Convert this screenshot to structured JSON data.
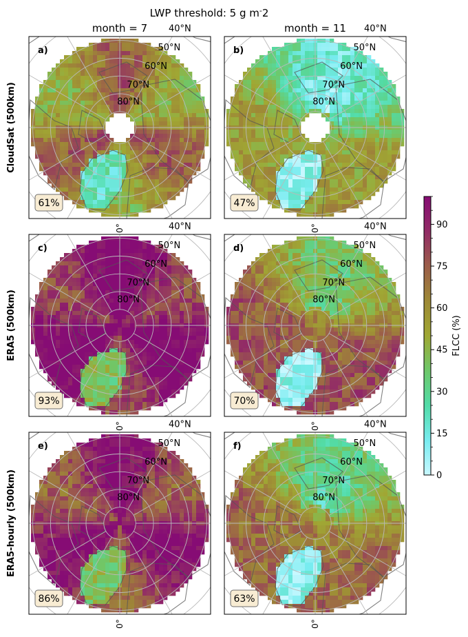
{
  "chart_data": {
    "type": "heatmap",
    "title": "LWP threshold: 5 g m$^-$2",
    "projection": "north polar stereographic",
    "column_titles": [
      "month = 7",
      "month = 11"
    ],
    "row_labels": [
      "CloudSat (500km)",
      "ERA5 (500km)",
      "ERA5-hourly (500km)"
    ],
    "lat_circle_labels": [
      "80°N",
      "70°N",
      "60°N",
      "50°N",
      "40°N"
    ],
    "lon_label": "0°",
    "colorbar": {
      "label": "FLCC (%)",
      "range": [
        0,
        100
      ],
      "tick_values": [
        0,
        15,
        30,
        45,
        60,
        75,
        90
      ],
      "tick_labels": [
        "0",
        "15",
        "30",
        "45",
        "60",
        "75",
        "90"
      ],
      "colors": [
        "#c8f8ff",
        "#78ecf0",
        "#52dca8",
        "#6ec86a",
        "#a0a834",
        "#9e8a36",
        "#9c5e4a",
        "#922c66",
        "#860c74"
      ]
    },
    "panels": [
      {
        "letter": "a)",
        "row": 0,
        "col": 0,
        "mean_label": "61%",
        "mean_value": 61
      },
      {
        "letter": "b)",
        "row": 0,
        "col": 1,
        "mean_label": "47%",
        "mean_value": 47
      },
      {
        "letter": "c)",
        "row": 1,
        "col": 0,
        "mean_label": "93%",
        "mean_value": 93
      },
      {
        "letter": "d)",
        "row": 1,
        "col": 1,
        "mean_label": "70%",
        "mean_value": 70
      },
      {
        "letter": "e)",
        "row": 2,
        "col": 0,
        "mean_label": "86%",
        "mean_value": 86
      },
      {
        "letter": "f)",
        "row": 2,
        "col": 1,
        "mean_label": "63%",
        "mean_value": 63
      }
    ]
  }
}
